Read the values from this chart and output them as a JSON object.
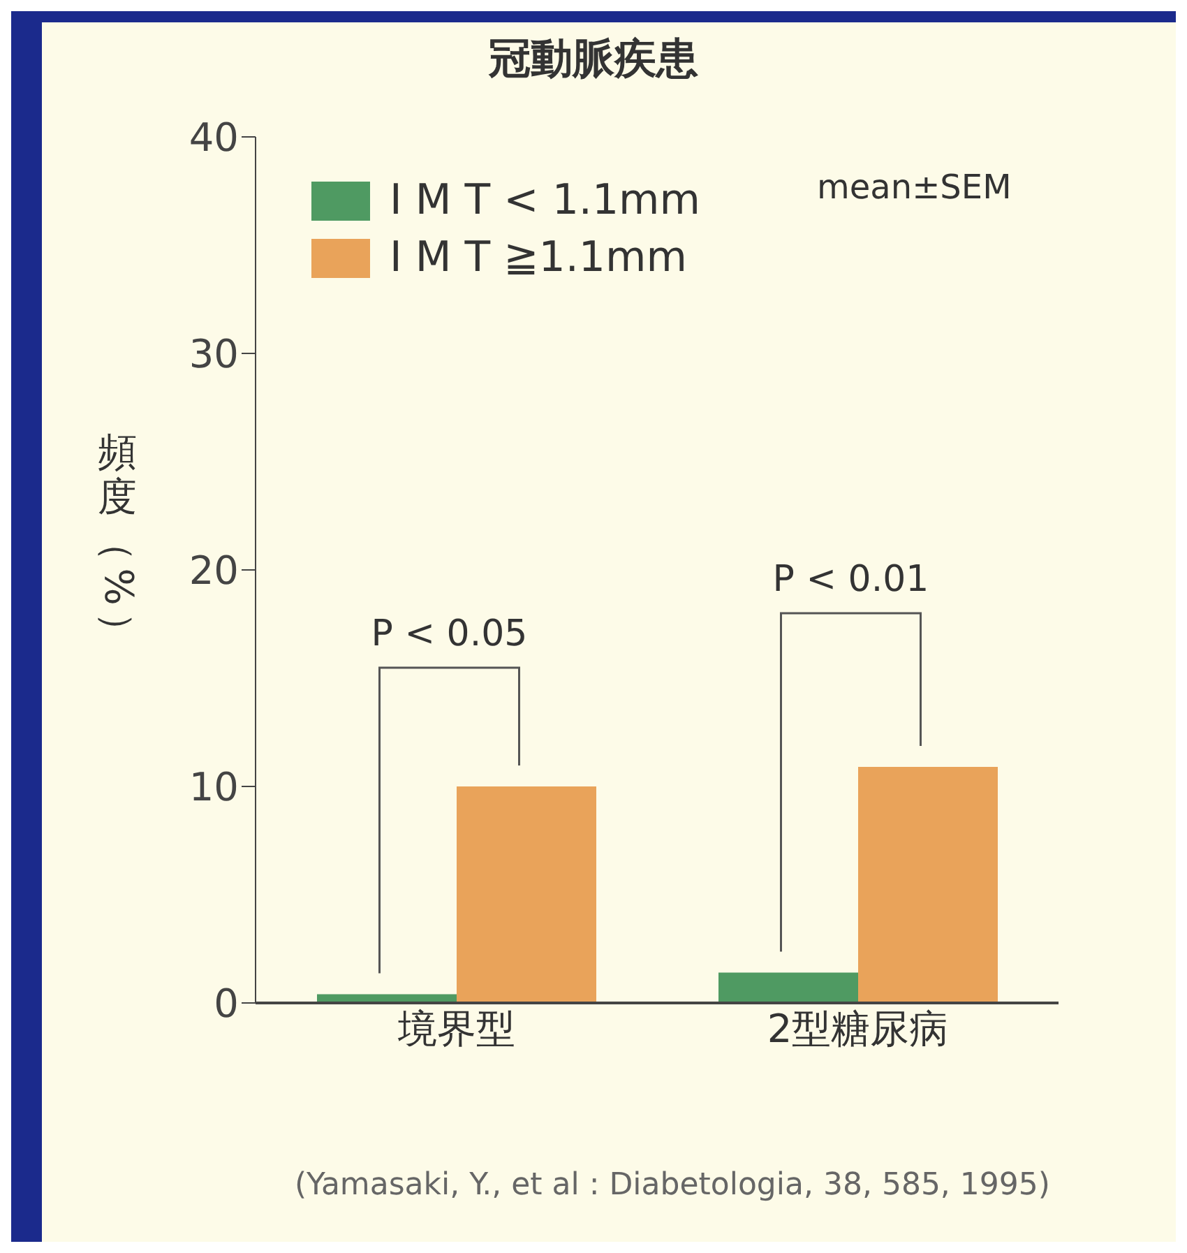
{
  "chart_data": {
    "type": "bar",
    "title": "冠動脈疾患",
    "ylabel": "頻度（%）",
    "categories": [
      "境界型",
      "2型糖尿病"
    ],
    "series": [
      {
        "name": "I M T < 1.1mm",
        "color": "#4f9a62",
        "values": [
          0.4,
          1.4
        ]
      },
      {
        "name": "I M T ≧1.1mm",
        "color": "#e9a35a",
        "values": [
          10,
          10.9
        ]
      }
    ],
    "ylim": [
      0,
      40
    ],
    "yticks": [
      0,
      10,
      20,
      30,
      40
    ],
    "legend": "top left",
    "annotations": [
      "P < 0.05",
      "P < 0.01",
      "mean±SEM",
      "(Yamasaki, Y., et al : Diabetologia, 38, 585, 1995)"
    ]
  }
}
